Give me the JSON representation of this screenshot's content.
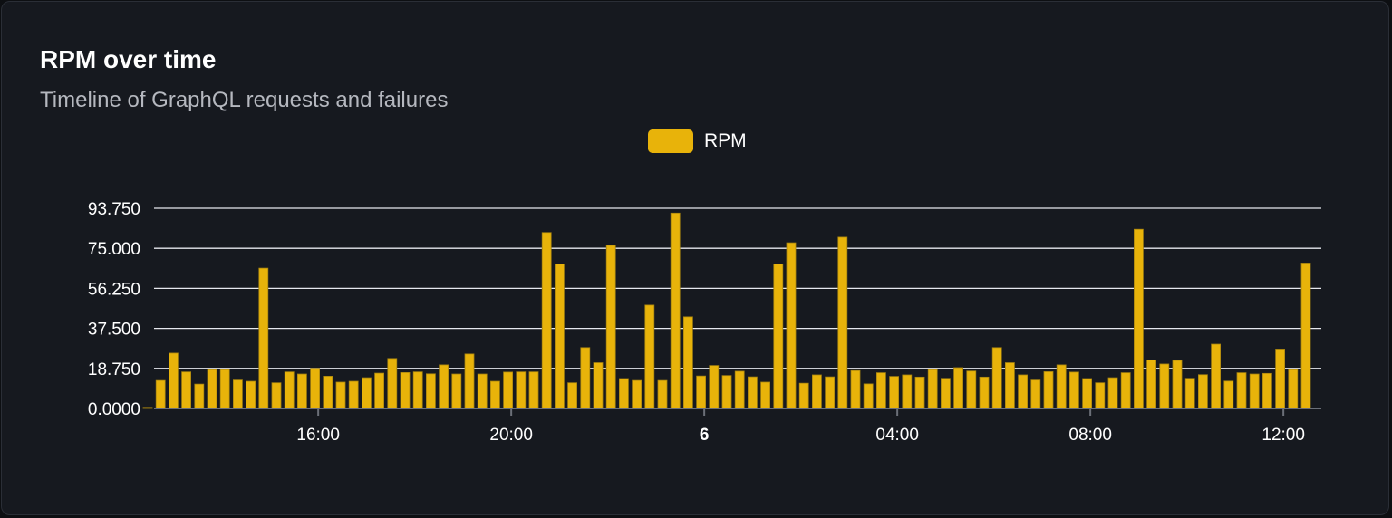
{
  "header": {
    "title": "RPM over time",
    "subtitle": "Timeline of GraphQL requests and failures"
  },
  "colors": {
    "bar": "#e8b30a",
    "bar_border": "#a9850f",
    "grid": "#e6e8ee",
    "background": "#16191f"
  },
  "chart_data": {
    "type": "bar",
    "title": "RPM over time",
    "subtitle": "Timeline of GraphQL requests and failures",
    "legend": {
      "position": "top",
      "entries": [
        "RPM"
      ]
    },
    "grid": true,
    "ylim": [
      0,
      93.75
    ],
    "y_ticks": [
      "0.0000",
      "18.750",
      "37.500",
      "56.250",
      "75.000",
      "93.750"
    ],
    "y_tick_values": [
      0,
      18.75,
      37.5,
      56.25,
      75,
      93.75
    ],
    "x_ticks": [
      {
        "label": "16:00",
        "time": "16:00",
        "bold": false
      },
      {
        "label": "20:00",
        "time": "20:00",
        "bold": false
      },
      {
        "label": "6",
        "time": "00:00",
        "bold": true
      },
      {
        "label": "04:00",
        "time": "04:00",
        "bold": false
      },
      {
        "label": "08:00",
        "time": "08:00",
        "bold": false
      },
      {
        "label": "12:00",
        "time": "12:00",
        "bold": false
      }
    ],
    "series": [
      {
        "name": "RPM",
        "x": [
          "12:28",
          "12:44",
          "13:00",
          "13:16",
          "13:32",
          "13:48",
          "14:04",
          "14:20",
          "14:36",
          "14:52",
          "15:08",
          "15:24",
          "15:40",
          "15:56",
          "16:12",
          "16:28",
          "16:44",
          "17:00",
          "17:16",
          "17:32",
          "17:48",
          "18:04",
          "18:20",
          "18:36",
          "18:52",
          "19:08",
          "19:24",
          "19:40",
          "19:56",
          "20:12",
          "20:28",
          "20:44",
          "21:00",
          "21:16",
          "21:32",
          "21:48",
          "22:04",
          "22:20",
          "22:36",
          "22:52",
          "23:08",
          "23:24",
          "23:40",
          "23:56",
          "00:12",
          "00:28",
          "00:44",
          "01:00",
          "01:16",
          "01:32",
          "01:48",
          "02:04",
          "02:20",
          "02:36",
          "02:52",
          "03:08",
          "03:24",
          "03:40",
          "03:56",
          "04:12",
          "04:28",
          "04:44",
          "05:00",
          "05:16",
          "05:32",
          "05:48",
          "06:04",
          "06:20",
          "06:36",
          "06:52",
          "07:08",
          "07:24",
          "07:40",
          "07:56",
          "08:12",
          "08:28",
          "08:44",
          "09:00",
          "09:16",
          "09:32",
          "09:48",
          "10:04",
          "10:20",
          "10:36",
          "10:52",
          "11:08",
          "11:24",
          "11:40",
          "11:56",
          "12:12",
          "12:28"
        ],
        "values": [
          0.5,
          13.1,
          25.9,
          17.1,
          11.4,
          18.2,
          18.2,
          13.3,
          12.7,
          65.7,
          12.0,
          17.1,
          16.1,
          18.8,
          15.1,
          12.3,
          12.7,
          14.4,
          16.5,
          23.4,
          16.8,
          17.1,
          16.2,
          20.4,
          16.1,
          25.5,
          16.1,
          12.7,
          17.0,
          17.1,
          17.1,
          82.4,
          67.7,
          12.0,
          28.5,
          21.4,
          76.4,
          14.0,
          13.1,
          48.4,
          13.1,
          91.5,
          42.9,
          15.2,
          20.1,
          15.4,
          17.4,
          14.8,
          12.3,
          67.7,
          77.6,
          11.8,
          15.7,
          14.8,
          80.2,
          17.7,
          11.5,
          16.7,
          15.0,
          15.7,
          14.7,
          18.2,
          14.1,
          19.1,
          17.5,
          14.7,
          28.5,
          21.4,
          15.7,
          13.3,
          17.2,
          20.4,
          17.0,
          14.0,
          12.0,
          14.4,
          16.7,
          83.9,
          22.7,
          20.8,
          22.5,
          14.1,
          15.8,
          30.1,
          12.8,
          16.7,
          16.1,
          16.4,
          27.8,
          18.2,
          68.1
        ]
      }
    ]
  }
}
